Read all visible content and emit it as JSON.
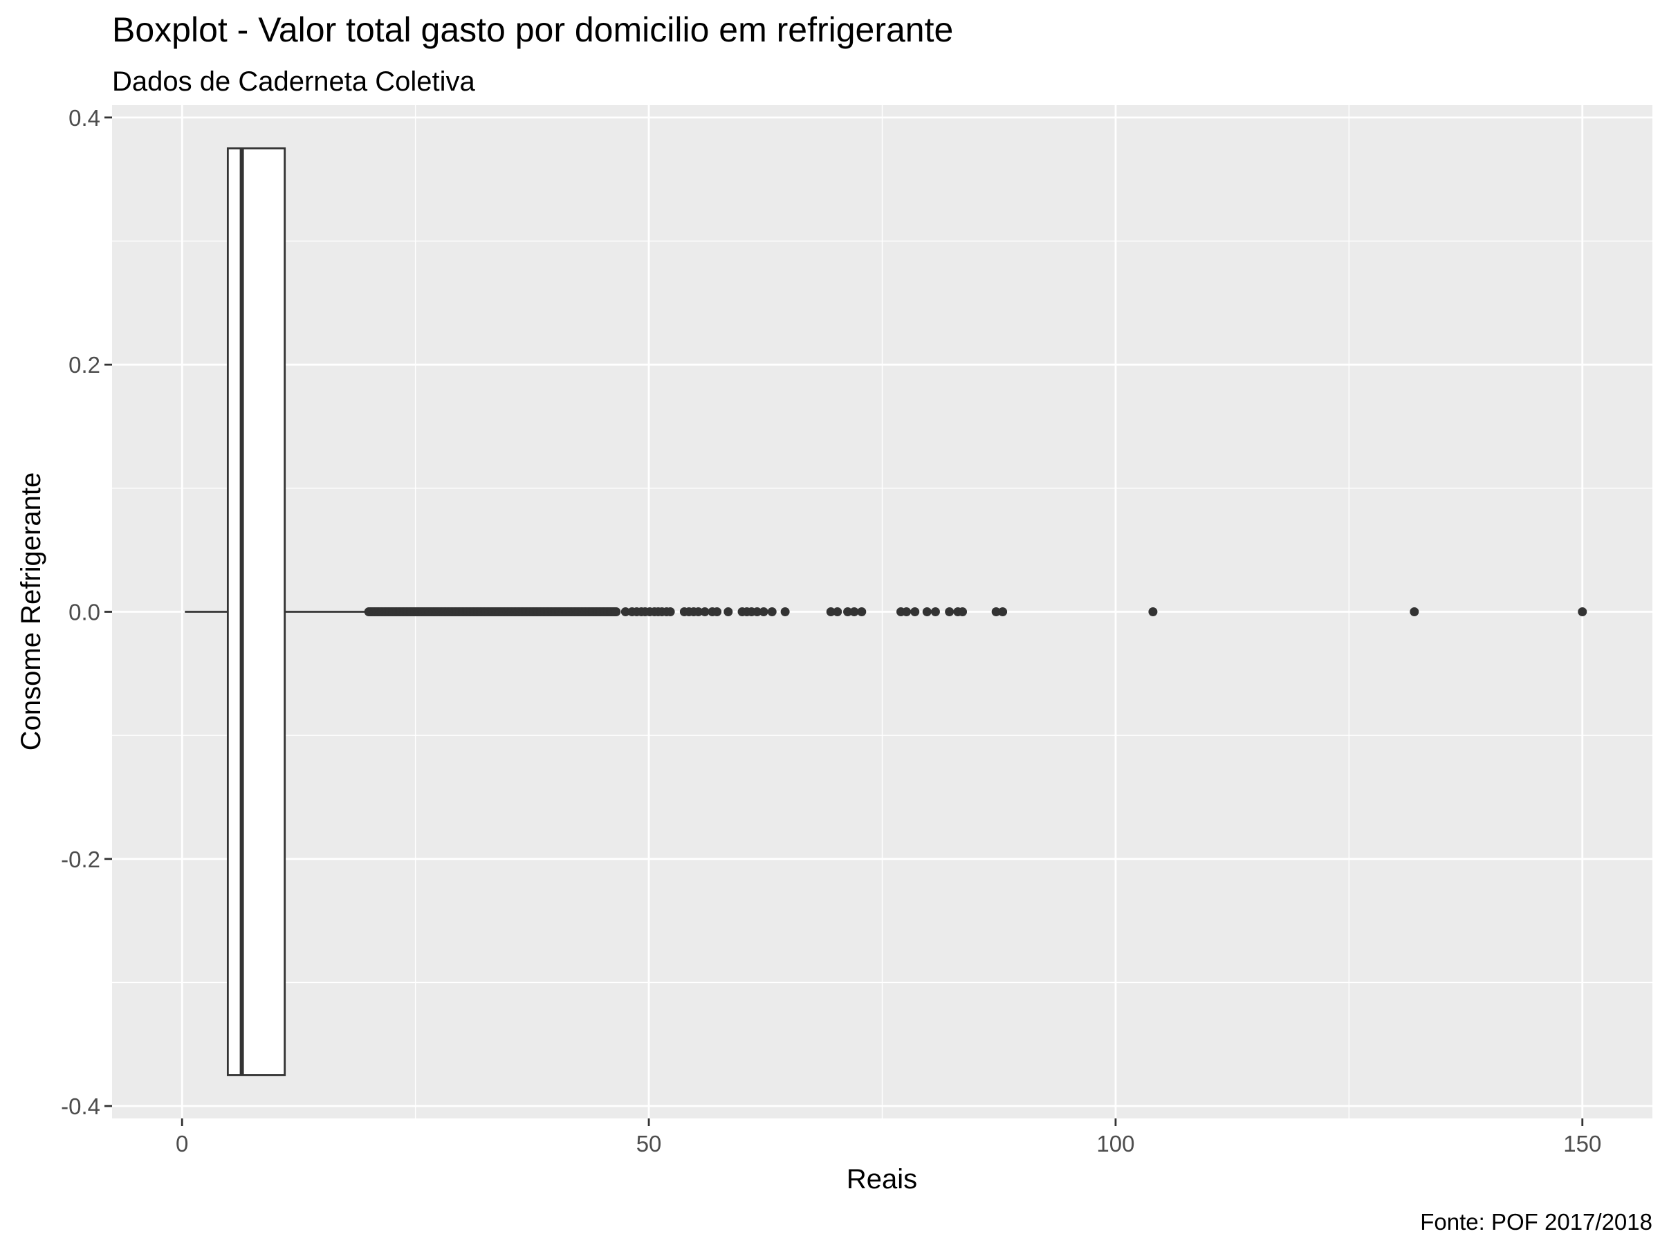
{
  "chart_data": {
    "type": "boxplot",
    "title": "Boxplot - Valor total gasto por domicilio em refrigerante",
    "subtitle": "Dados de Caderneta Coletiva",
    "xlabel": "Reais",
    "ylabel": "Consome Refrigerante",
    "caption": "Fonte: POF 2017/2018",
    "xlim": [
      -7.5,
      157.5
    ],
    "ylim": [
      -0.41,
      0.41
    ],
    "x_ticks": [
      0,
      50,
      100,
      150
    ],
    "x_tick_labels": [
      "0",
      "50",
      "100",
      "150"
    ],
    "y_ticks": [
      0.4,
      0.2,
      0.0,
      -0.2,
      -0.4
    ],
    "y_tick_labels": [
      "0.4",
      "0.2",
      "0.0",
      "-0.2",
      "-0.4"
    ],
    "grid": true,
    "box": {
      "y": 0,
      "whisker_low": 0.3,
      "q1": 4.9,
      "median": 6.4,
      "q3": 11.0,
      "whisker_high": 20.0,
      "half_width": 0.375
    },
    "outlier_range": [
      20.0,
      46.5
    ],
    "outliers": [
      47.5,
      48.2,
      48.7,
      49.2,
      49.6,
      50.1,
      50.6,
      51.0,
      51.4,
      51.9,
      52.3,
      53.8,
      54.3,
      54.8,
      55.3,
      56.0,
      56.8,
      57.3,
      58.5,
      60.0,
      60.5,
      61.0,
      61.6,
      62.3,
      63.2,
      64.6,
      69.5,
      70.2,
      71.3,
      72.0,
      72.8,
      77.0,
      77.6,
      78.5,
      79.8,
      80.7,
      82.2,
      83.1,
      83.6,
      87.2,
      87.9,
      104.0,
      132.0,
      150.0
    ]
  }
}
